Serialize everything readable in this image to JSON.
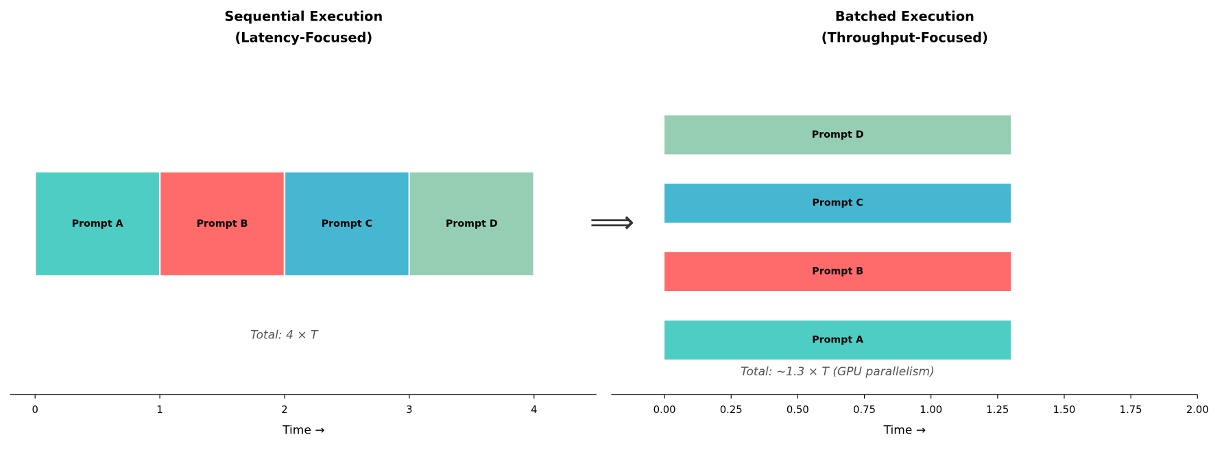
{
  "chart_data": [
    {
      "type": "gantt",
      "title": [
        "Sequential Execution",
        "(Latency-Focused)"
      ],
      "xlabel": "Time →",
      "xlim": [
        -0.2,
        4.5
      ],
      "xticks": [
        0,
        1,
        2,
        3,
        4
      ],
      "bars": [
        {
          "label": "Prompt A",
          "start": 0,
          "end": 1,
          "color": "#4ECDC4"
        },
        {
          "label": "Prompt B",
          "start": 1,
          "end": 2,
          "color": "#FF6B6B"
        },
        {
          "label": "Prompt C",
          "start": 2,
          "end": 3,
          "color": "#45B7D1"
        },
        {
          "label": "Prompt D",
          "start": 3,
          "end": 4,
          "color": "#96CEB4"
        }
      ],
      "annotation": "Total: 4 × T"
    },
    {
      "type": "gantt",
      "title": [
        "Batched Execution",
        "(Throughput-Focused)"
      ],
      "xlabel": "Time →",
      "xlim": [
        -0.2,
        2.0
      ],
      "xticks": [
        {
          "value": 0,
          "label": "0.00"
        },
        {
          "value": 0.25,
          "label": "0.25"
        },
        {
          "value": 0.5,
          "label": "0.50"
        },
        {
          "value": 0.75,
          "label": "0.75"
        },
        {
          "value": 1,
          "label": "1.00"
        },
        {
          "value": 1.25,
          "label": "1.25"
        },
        {
          "value": 1.5,
          "label": "1.50"
        },
        {
          "value": 1.75,
          "label": "1.75"
        },
        {
          "value": 2,
          "label": "2.00"
        }
      ],
      "bars": [
        {
          "label": "Prompt A",
          "start": 0,
          "end": 1.3,
          "color": "#4ECDC4"
        },
        {
          "label": "Prompt B",
          "start": 0,
          "end": 1.3,
          "color": "#FF6B6B"
        },
        {
          "label": "Prompt C",
          "start": 0,
          "end": 1.3,
          "color": "#45B7D1"
        },
        {
          "label": "Prompt D",
          "start": 0,
          "end": 1.3,
          "color": "#96CEB4"
        }
      ],
      "annotation": "Total: ~1.3 × T (GPU parallelism)"
    }
  ],
  "connector": "⟹"
}
